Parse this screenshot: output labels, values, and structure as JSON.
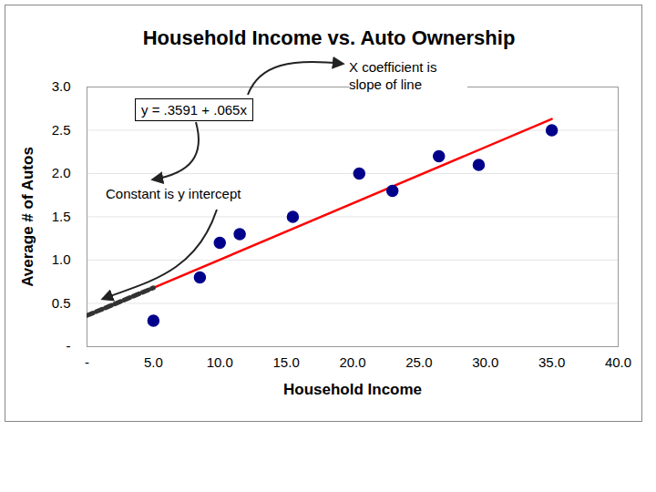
{
  "chart_data": {
    "type": "scatter",
    "title": "Household Income vs. Auto Ownership",
    "x_label": "Household Income",
    "y_label": "Average # of Autos",
    "x": [
      5.0,
      8.5,
      10.0,
      11.5,
      15.5,
      20.5,
      23.0,
      26.5,
      29.5,
      35.0
    ],
    "values": [
      0.3,
      0.8,
      1.2,
      1.3,
      1.5,
      2.0,
      1.8,
      2.2,
      2.1,
      2.5
    ],
    "color": "#00008b",
    "marker": "circle",
    "xlim": [
      0,
      40
    ],
    "ylim": [
      0,
      3
    ],
    "xticks": [
      {
        "value": 0,
        "label": "-"
      },
      {
        "value": 5,
        "label": "5.0"
      },
      {
        "value": 10,
        "label": "10.0"
      },
      {
        "value": 15,
        "label": "15.0"
      },
      {
        "value": 20,
        "label": "20.0"
      },
      {
        "value": 25,
        "label": "25.0"
      },
      {
        "value": 30,
        "label": "30.0"
      },
      {
        "value": 35,
        "label": "35.0"
      },
      {
        "value": 40,
        "label": "40.0"
      }
    ],
    "yticks": [
      {
        "value": 0,
        "label": "-"
      },
      {
        "value": 0.5,
        "label": "0.5"
      },
      {
        "value": 1,
        "label": "1.0"
      },
      {
        "value": 1.5,
        "label": "1.5"
      },
      {
        "value": 2,
        "label": "2.0"
      },
      {
        "value": 2.5,
        "label": "2.5"
      },
      {
        "value": 3,
        "label": "3.0"
      }
    ],
    "grid": "y",
    "lines": [
      {
        "x": [
          5,
          35
        ],
        "values": [
          0.68,
          2.63
        ],
        "color": "#ff0000",
        "line_style": "solid"
      },
      {
        "x": [
          0,
          5
        ],
        "values": [
          0.36,
          0.68
        ],
        "color": "#333333",
        "line_style": "dashed"
      }
    ],
    "annotations": [
      "y = .3591 + .065x",
      "X coefficient is slope of line",
      "Constant is y intercept"
    ]
  }
}
